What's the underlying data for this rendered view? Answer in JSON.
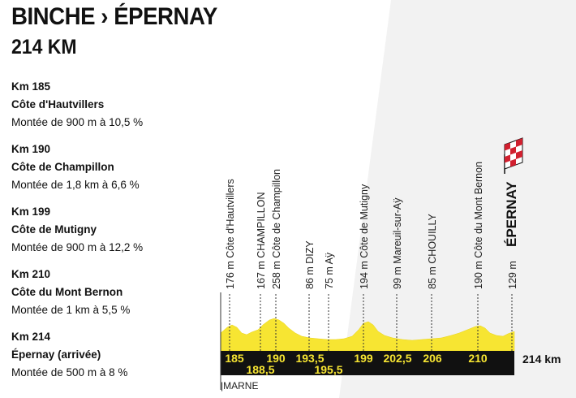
{
  "header": {
    "title": "BINCHE › ÉPERNAY",
    "distance": "214 KM"
  },
  "climbs": [
    {
      "km": "Km 185",
      "name": "Côte d'Hautvillers",
      "detail": "Montée de 900 m à 10,5 %"
    },
    {
      "km": "Km 190",
      "name": "Côte de Champillon",
      "detail": "Montée de 1,8 km à 6,6 %"
    },
    {
      "km": "Km 199",
      "name": "Côte de Mutigny",
      "detail": "Montée de 900 m à 12,2 %"
    },
    {
      "km": "Km 210",
      "name": "Côte du Mont Bernon",
      "detail": "Montée de 1 km à 5,5 %"
    },
    {
      "km": "Km 214",
      "name": "Épernay (arrivée)",
      "detail": "Montée de 500 m à 8 %"
    }
  ],
  "profile": {
    "points": [
      {
        "label": "176 m Côte d'Hautvillers",
        "km": "185"
      },
      {
        "label": "167 m CHAMPILLON",
        "km": "188,5"
      },
      {
        "label": "258 m Côte de Champillon",
        "km": "190"
      },
      {
        "label": "86 m DIZY",
        "km": "193,5"
      },
      {
        "label": "75 m Aÿ",
        "km": "195,5"
      },
      {
        "label": "194 m Côte de Mutigny",
        "km": "199"
      },
      {
        "label": "99 m Mareuil-sur-Aÿ",
        "km": "202,5"
      },
      {
        "label": "85 m CHOUILLY",
        "km": "206"
      },
      {
        "label": "190 m Côte du Mont Bernon",
        "km": "210"
      },
      {
        "label": "129 m",
        "km": ""
      }
    ],
    "finish": "ÉPERNAY",
    "total_distance": "214 km",
    "department": "|MARNE"
  },
  "colors": {
    "profile_fill": "#f7e532",
    "bar": "#111111",
    "background_right": "#ececec",
    "background_left": "#ffffff"
  }
}
